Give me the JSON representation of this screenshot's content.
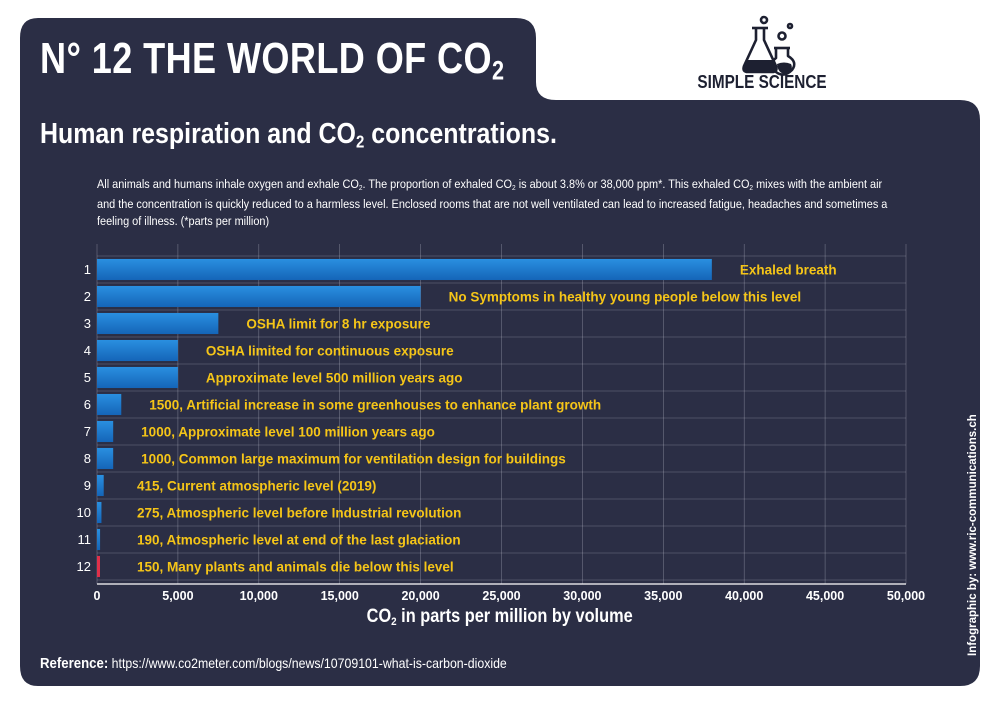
{
  "header": {
    "title_main": "N° 12  THE WORLD OF CO",
    "title_sub": "2",
    "brand": "SIMPLE SCIENCE"
  },
  "subtitle": {
    "before": "Human respiration and CO",
    "sub": "2",
    "after": " concentrations."
  },
  "description": {
    "p1": "All animals and humans inhale oxygen and exhale CO",
    "s1": "2",
    "p2": ". The proportion of exhaled CO",
    "s2": "2",
    "p3": " is about 3.8% or 38,000 ppm*. This exhaled CO",
    "s3": "2",
    "p4": " mixes with the ambient air and the concentration is quickly reduced to a harmless level. Enclosed rooms that are not well ventilated can lead to increased fatigue, headaches and sometimes a feeling of illness. (*parts per million)"
  },
  "footer": {
    "reference_label": "Reference:",
    "reference_url": " https://www.co2meter.com/blogs/news/10709101-what-is-carbon-dioxide",
    "credit": "Infographic by: www.ric-communications.ch"
  },
  "colors": {
    "background": "#2b2e45",
    "bar_blue": "#1e7fd0",
    "bar_red": "#e0304a",
    "label_yellow": "#f5c518",
    "grid": "#c8cad6"
  },
  "chart_data": {
    "type": "bar",
    "orientation": "horizontal",
    "xlabel_before": "CO",
    "xlabel_sub": "2",
    "xlabel_after": " in parts per million by volume",
    "xlim": [
      0,
      50000
    ],
    "xticks": [
      "0",
      "5,000",
      "10,000",
      "15,000",
      "20,000",
      "25,000",
      "30,000",
      "35,000",
      "40,000",
      "45,000",
      "50,000"
    ],
    "grid": true,
    "categories": [
      "1",
      "2",
      "3",
      "4",
      "5",
      "6",
      "7",
      "8",
      "9",
      "10",
      "11",
      "12"
    ],
    "values": [
      38000,
      20000,
      7500,
      5000,
      5000,
      1500,
      1000,
      1000,
      415,
      275,
      190,
      150
    ],
    "labels": [
      "Exhaled breath",
      "No Symptoms in healthy young people below this level",
      "OSHA limit for 8 hr exposure",
      "OSHA limited for continuous exposure",
      "Approximate level 500 million years ago",
      "1500, Artificial increase in some greenhouses to enhance plant growth",
      "1000, Approximate level 100 million years ago",
      "1000, Common large maximum for ventilation design for buildings",
      "415, Current atmospheric level (2019)",
      "275, Atmospheric level before Industrial revolution",
      "190, Atmospheric level at end of the last glaciation",
      "150, Many plants and animals die below this level"
    ],
    "highlight_index": 11
  }
}
